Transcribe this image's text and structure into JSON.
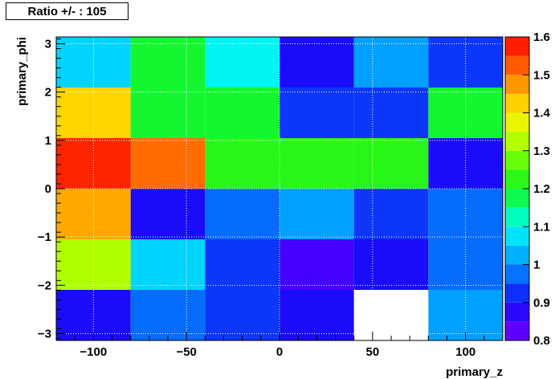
{
  "title": "Ratio +/- : 105",
  "chart_data": {
    "type": "heatmap",
    "xlabel": "primary_z",
    "ylabel": "primary_phi",
    "xlim": [
      -120,
      120
    ],
    "ylim": [
      -3.14159,
      3.14159
    ],
    "x_edges": [
      -120,
      -80,
      -40,
      0,
      40,
      80,
      120
    ],
    "y_edges": [
      -3.14159,
      -2.0944,
      -1.0472,
      0,
      1.0472,
      2.0944,
      3.14159
    ],
    "x_ticks": [
      -100,
      -50,
      0,
      50,
      100
    ],
    "x_tick_labels": [
      "−100",
      "−50",
      "0",
      "50",
      "100"
    ],
    "y_ticks": [
      -3,
      -2,
      -1,
      0,
      1,
      2,
      3
    ],
    "y_tick_labels": [
      "−3",
      "−2",
      "−1",
      "0",
      "1",
      "2",
      "3"
    ],
    "z_range": [
      0.8,
      1.6
    ],
    "colorbar_ticks": [
      0.8,
      0.9,
      1.0,
      1.1,
      1.2,
      1.3,
      1.4,
      1.5,
      1.6
    ],
    "colorbar_tick_labels": [
      "0.8",
      "0.9",
      "1",
      "1.1",
      "1.2",
      "1.3",
      "1.4",
      "1.5",
      "1.6"
    ],
    "values": [
      [
        1.06,
        1.19,
        1.09,
        0.89,
        1.01,
        0.93
      ],
      [
        1.42,
        1.19,
        1.19,
        0.93,
        0.93,
        1.19
      ],
      [
        1.57,
        1.51,
        1.22,
        1.22,
        1.22,
        0.89
      ],
      [
        1.46,
        0.89,
        0.97,
        1.01,
        0.93,
        0.97
      ],
      [
        1.32,
        1.06,
        0.93,
        0.85,
        0.89,
        0.97
      ],
      [
        0.89,
        0.97,
        0.93,
        0.89,
        null,
        1.01
      ]
    ],
    "grid": true
  }
}
